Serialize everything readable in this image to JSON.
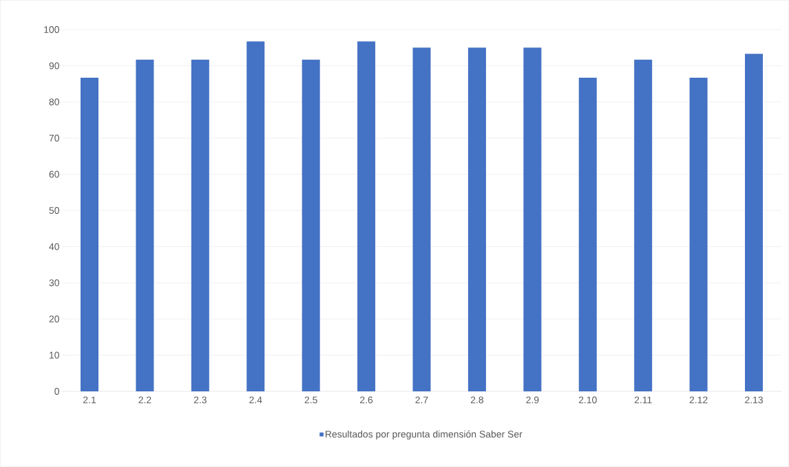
{
  "chart_data": {
    "type": "bar",
    "categories": [
      "2.1",
      "2.2",
      "2.3",
      "2.4",
      "2.5",
      "2.6",
      "2.7",
      "2.8",
      "2.9",
      "2.10",
      "2.11",
      "2.12",
      "2.13"
    ],
    "series": [
      {
        "name": "Resultados por pregunta dimensión Saber Ser",
        "color": "#4472c4",
        "values": [
          86.7,
          91.7,
          91.7,
          96.7,
          91.7,
          96.7,
          95,
          95,
          95,
          86.7,
          91.7,
          86.7,
          93.3
        ]
      }
    ],
    "ylim": [
      0,
      100
    ],
    "yticks": [
      0,
      10,
      20,
      30,
      40,
      50,
      60,
      70,
      80,
      90,
      100
    ],
    "grid": "y",
    "legend": "bottom"
  }
}
